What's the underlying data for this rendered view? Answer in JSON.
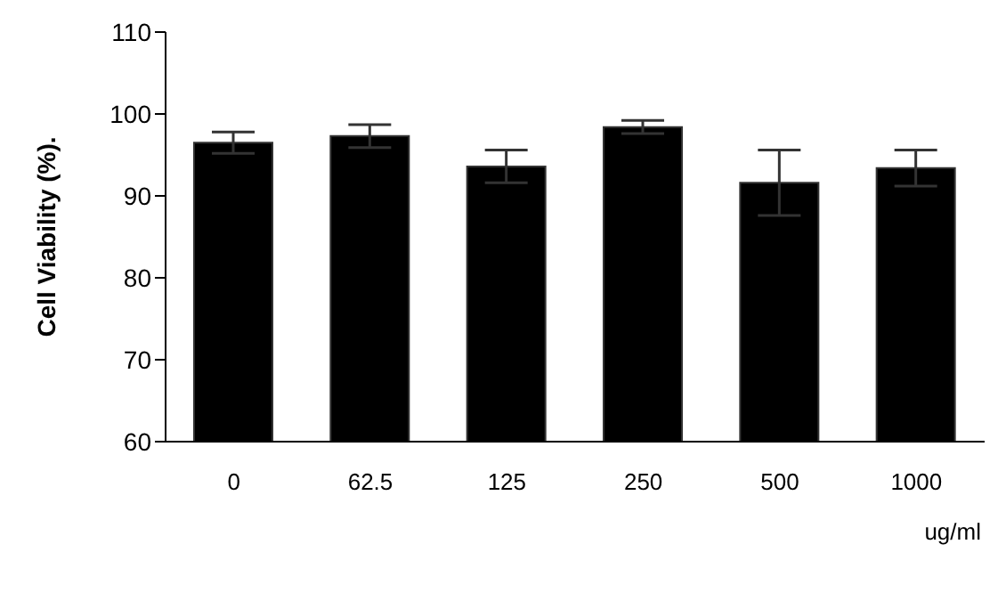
{
  "chart_data": {
    "type": "bar",
    "categories": [
      "0",
      "62.5",
      "125",
      "250",
      "500",
      "1000"
    ],
    "values": [
      96.5,
      97.3,
      93.6,
      98.4,
      91.6,
      93.4
    ],
    "errors": [
      1.3,
      1.4,
      2.0,
      0.8,
      4.0,
      2.2
    ],
    "color": "#000000",
    "ylabel": "Cell Viability (%).",
    "xlabel": "ug/ml",
    "ylim": [
      60,
      110
    ],
    "yticks": [
      60,
      70,
      80,
      90,
      100,
      110
    ],
    "grid": false
  }
}
